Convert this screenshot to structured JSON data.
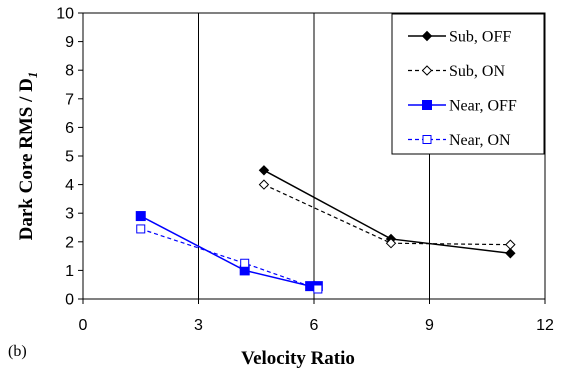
{
  "chart_data": {
    "type": "line",
    "xlabel": "Velocity Ratio",
    "ylabel": "Dark Core  RMS / D",
    "ylabel_sub": "1",
    "panel_label": "(b)",
    "xlim": [
      0,
      12
    ],
    "ylim": [
      0,
      10
    ],
    "xticks": [
      0,
      3,
      6,
      9,
      12
    ],
    "yticks": [
      0,
      1,
      2,
      3,
      4,
      5,
      6,
      7,
      8,
      9,
      10
    ],
    "grid": "vertical",
    "legend_position": "top-right",
    "series": [
      {
        "name": "Sub, OFF",
        "color": "#000000",
        "line": "solid",
        "marker": "diamond-filled",
        "x": [
          4.7,
          8.0,
          11.1
        ],
        "y": [
          4.5,
          2.1,
          1.6
        ]
      },
      {
        "name": "Sub, ON",
        "color": "#000000",
        "line": "dashed",
        "marker": "diamond-open",
        "x": [
          4.7,
          8.0,
          11.1
        ],
        "y": [
          4.0,
          1.95,
          1.9
        ]
      },
      {
        "name": "Near, OFF",
        "color": "#0000ff",
        "line": "solid",
        "marker": "square-filled",
        "x": [
          1.5,
          4.2,
          5.9,
          6.1
        ],
        "y": [
          2.9,
          1.0,
          0.45,
          0.45
        ]
      },
      {
        "name": "Near, ON",
        "color": "#0000ff",
        "line": "dashed",
        "marker": "square-open",
        "x": [
          1.5,
          4.2,
          6.1
        ],
        "y": [
          2.45,
          1.25,
          0.35
        ]
      }
    ]
  }
}
